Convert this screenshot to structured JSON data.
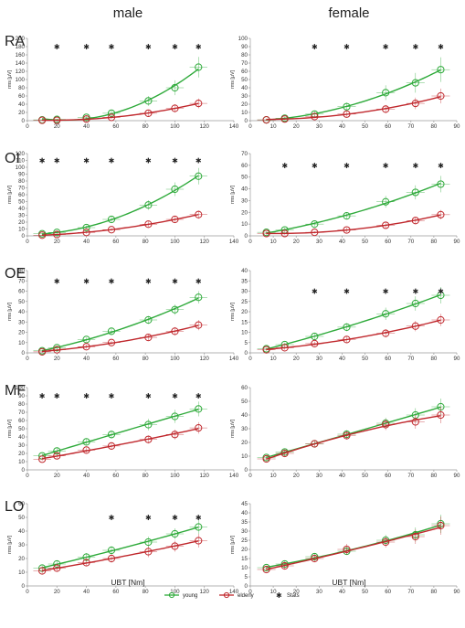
{
  "figure": {
    "col_titles": [
      "male",
      "female"
    ],
    "row_labels": [
      "RA",
      "OI",
      "OE",
      "MF",
      "LO"
    ],
    "x_label": "UBT [Nm]",
    "legend": [
      {
        "label": "young",
        "color": "#2eaa3a",
        "marker": "circle"
      },
      {
        "label": "elderly",
        "color": "#c0282d",
        "marker": "circle"
      },
      {
        "label": "Stats",
        "color": "#222222",
        "marker": "x"
      }
    ]
  },
  "chart_data": [
    {
      "type": "line",
      "muscle": "RA",
      "sex": "male",
      "ylabel": "rms [µV]",
      "xlim": [
        0,
        140
      ],
      "ylim": [
        0,
        200
      ],
      "xticks": [
        0,
        20,
        40,
        60,
        80,
        100,
        120,
        140
      ],
      "yticks": [
        0,
        20,
        40,
        60,
        80,
        100,
        120,
        140,
        160,
        180,
        200
      ],
      "series": [
        {
          "name": "young",
          "x": [
            10,
            20,
            40,
            57,
            82,
            100,
            116
          ],
          "y": [
            2,
            3,
            8,
            18,
            48,
            80,
            130
          ],
          "err": [
            2,
            2,
            5,
            8,
            12,
            18,
            25
          ]
        },
        {
          "name": "elderly",
          "x": [
            10,
            20,
            40,
            57,
            82,
            100,
            116
          ],
          "y": [
            1,
            1,
            4,
            8,
            18,
            30,
            42
          ],
          "err": [
            1,
            1,
            3,
            4,
            8,
            10,
            12
          ]
        }
      ],
      "stats_x": [
        20,
        40,
        57,
        82,
        100,
        116
      ],
      "stats_y": 180
    },
    {
      "type": "line",
      "muscle": "RA",
      "sex": "female",
      "ylabel": "rms [µV]",
      "xlim": [
        0,
        90
      ],
      "ylim": [
        0,
        100
      ],
      "xticks": [
        0,
        10,
        20,
        30,
        40,
        50,
        60,
        70,
        80,
        90
      ],
      "yticks": [
        0,
        10,
        20,
        30,
        40,
        50,
        60,
        70,
        80,
        90,
        100
      ],
      "series": [
        {
          "name": "young",
          "x": [
            7,
            15,
            28,
            42,
            59,
            72,
            83
          ],
          "y": [
            1,
            3,
            8,
            17,
            34,
            46,
            62
          ],
          "err": [
            1,
            2,
            4,
            5,
            9,
            12,
            15
          ]
        },
        {
          "name": "elderly",
          "x": [
            7,
            15,
            28,
            42,
            59,
            72,
            83
          ],
          "y": [
            1,
            2,
            5,
            8,
            14,
            21,
            30
          ],
          "err": [
            1,
            1,
            2,
            3,
            5,
            7,
            9
          ]
        }
      ],
      "stats_x": [
        28,
        42,
        59,
        72,
        83
      ],
      "stats_y": 90
    },
    {
      "type": "line",
      "muscle": "OI",
      "sex": "male",
      "ylabel": "rms [µV]",
      "xlim": [
        0,
        140
      ],
      "ylim": [
        0,
        120
      ],
      "xticks": [
        0,
        20,
        40,
        60,
        80,
        100,
        120,
        140
      ],
      "yticks": [
        0,
        10,
        20,
        30,
        40,
        50,
        60,
        70,
        80,
        90,
        100,
        110,
        120
      ],
      "series": [
        {
          "name": "young",
          "x": [
            10,
            20,
            40,
            57,
            82,
            100,
            116
          ],
          "y": [
            3,
            5,
            12,
            24,
            45,
            68,
            87
          ],
          "err": [
            2,
            2,
            3,
            4,
            7,
            10,
            12
          ]
        },
        {
          "name": "elderly",
          "x": [
            10,
            20,
            40,
            57,
            82,
            100,
            116
          ],
          "y": [
            1,
            2,
            5,
            9,
            17,
            24,
            31
          ],
          "err": [
            1,
            1,
            2,
            2,
            4,
            5,
            6
          ]
        }
      ],
      "stats_x": [
        10,
        20,
        40,
        57,
        82,
        100,
        116
      ],
      "stats_y": 110
    },
    {
      "type": "line",
      "muscle": "OI",
      "sex": "female",
      "ylabel": "rms [µV]",
      "xlim": [
        0,
        90
      ],
      "ylim": [
        0,
        70
      ],
      "xticks": [
        0,
        10,
        20,
        30,
        40,
        50,
        60,
        70,
        80,
        90
      ],
      "yticks": [
        0,
        10,
        20,
        30,
        40,
        50,
        60,
        70
      ],
      "series": [
        {
          "name": "young",
          "x": [
            7,
            15,
            28,
            42,
            59,
            72,
            83
          ],
          "y": [
            3,
            5,
            10,
            17,
            29,
            37,
            44
          ],
          "err": [
            1,
            2,
            2,
            3,
            5,
            6,
            7
          ]
        },
        {
          "name": "elderly",
          "x": [
            7,
            15,
            28,
            42,
            59,
            72,
            83
          ],
          "y": [
            2,
            2,
            3,
            5,
            9,
            13,
            18
          ],
          "err": [
            1,
            1,
            1,
            2,
            3,
            3,
            4
          ]
        }
      ],
      "stats_x": [
        15,
        28,
        42,
        59,
        72,
        83
      ],
      "stats_y": 60
    },
    {
      "type": "line",
      "muscle": "OE",
      "sex": "male",
      "ylabel": "rms [µV]",
      "xlim": [
        0,
        140
      ],
      "ylim": [
        0,
        80
      ],
      "xticks": [
        0,
        20,
        40,
        60,
        80,
        100,
        120,
        140
      ],
      "yticks": [
        0,
        10,
        20,
        30,
        40,
        50,
        60,
        70,
        80
      ],
      "series": [
        {
          "name": "young",
          "x": [
            10,
            20,
            40,
            57,
            82,
            100,
            116
          ],
          "y": [
            2,
            5,
            13,
            21,
            32,
            42,
            54
          ],
          "err": [
            1,
            2,
            2,
            3,
            4,
            5,
            6
          ]
        },
        {
          "name": "elderly",
          "x": [
            10,
            20,
            40,
            57,
            82,
            100,
            116
          ],
          "y": [
            1,
            3,
            6,
            10,
            15,
            21,
            27
          ],
          "err": [
            1,
            1,
            2,
            2,
            3,
            4,
            5
          ]
        }
      ],
      "stats_x": [
        20,
        40,
        57,
        82,
        100,
        116
      ],
      "stats_y": 70
    },
    {
      "type": "line",
      "muscle": "OE",
      "sex": "female",
      "ylabel": "rms [µV]",
      "xlim": [
        0,
        90
      ],
      "ylim": [
        0,
        40
      ],
      "xticks": [
        0,
        10,
        20,
        30,
        40,
        50,
        60,
        70,
        80,
        90
      ],
      "yticks": [
        0,
        5,
        10,
        15,
        20,
        25,
        30,
        35,
        40
      ],
      "series": [
        {
          "name": "young",
          "x": [
            7,
            15,
            28,
            42,
            59,
            72,
            83
          ],
          "y": [
            2,
            4,
            8,
            12.5,
            19,
            24,
            28
          ],
          "err": [
            0.5,
            1,
            1.5,
            2,
            3,
            3.5,
            4
          ]
        },
        {
          "name": "elderly",
          "x": [
            7,
            15,
            28,
            42,
            59,
            72,
            83
          ],
          "y": [
            1.5,
            2.5,
            4.5,
            6.5,
            9.5,
            13,
            16
          ],
          "err": [
            0.5,
            1,
            1,
            1.5,
            2,
            2.5,
            3
          ]
        }
      ],
      "stats_x": [
        28,
        42,
        59,
        72,
        83
      ],
      "stats_y": 30
    },
    {
      "type": "line",
      "muscle": "MF",
      "sex": "male",
      "ylabel": "rms [µV]",
      "xlim": [
        0,
        140
      ],
      "ylim": [
        0,
        100
      ],
      "xticks": [
        0,
        20,
        40,
        60,
        80,
        100,
        120,
        140
      ],
      "yticks": [
        0,
        10,
        20,
        30,
        40,
        50,
        60,
        70,
        80,
        90,
        100
      ],
      "series": [
        {
          "name": "young",
          "x": [
            10,
            20,
            40,
            57,
            82,
            100,
            116
          ],
          "y": [
            17,
            23,
            34,
            43,
            55,
            65,
            74
          ],
          "err": [
            3,
            4,
            4,
            5,
            7,
            8,
            9
          ]
        },
        {
          "name": "elderly",
          "x": [
            10,
            20,
            40,
            57,
            82,
            100,
            116
          ],
          "y": [
            13,
            17,
            24,
            29,
            37,
            43,
            51
          ],
          "err": [
            2,
            3,
            3,
            4,
            5,
            6,
            7
          ]
        }
      ],
      "stats_x": [
        10,
        20,
        40,
        57,
        82,
        100,
        116
      ],
      "stats_y": 90
    },
    {
      "type": "line",
      "muscle": "MF",
      "sex": "female",
      "ylabel": "rms [µV]",
      "xlim": [
        0,
        90
      ],
      "ylim": [
        0,
        60
      ],
      "xticks": [
        0,
        10,
        20,
        30,
        40,
        50,
        60,
        70,
        80,
        90
      ],
      "yticks": [
        0,
        10,
        20,
        30,
        40,
        50,
        60
      ],
      "series": [
        {
          "name": "young",
          "x": [
            7,
            15,
            28,
            42,
            59,
            72,
            83
          ],
          "y": [
            9,
            13,
            19,
            26,
            34,
            40,
            46
          ],
          "err": [
            1,
            2,
            2,
            3,
            4,
            5,
            6
          ]
        },
        {
          "name": "elderly",
          "x": [
            7,
            15,
            28,
            42,
            59,
            72,
            83
          ],
          "y": [
            8,
            12,
            19,
            25,
            33,
            35,
            40
          ],
          "err": [
            1,
            2,
            2,
            3,
            4,
            5,
            6
          ]
        }
      ],
      "stats_x": [],
      "stats_y": null
    },
    {
      "type": "line",
      "muscle": "LO",
      "sex": "male",
      "ylabel": "rms [µV]",
      "xlim": [
        0,
        140
      ],
      "ylim": [
        0,
        60
      ],
      "xticks": [
        0,
        20,
        40,
        60,
        80,
        100,
        120,
        140
      ],
      "yticks": [
        0,
        10,
        20,
        30,
        40,
        50,
        60
      ],
      "series": [
        {
          "name": "young",
          "x": [
            10,
            20,
            40,
            57,
            82,
            100,
            116
          ],
          "y": [
            13,
            16,
            21,
            26,
            32,
            38,
            43
          ],
          "err": [
            2,
            2,
            3,
            3,
            4,
            4,
            5
          ]
        },
        {
          "name": "elderly",
          "x": [
            10,
            20,
            40,
            57,
            82,
            100,
            116
          ],
          "y": [
            11,
            13,
            17,
            20,
            25,
            29,
            33
          ],
          "err": [
            2,
            2,
            2,
            3,
            4,
            4,
            5
          ]
        }
      ],
      "stats_x": [
        57,
        82,
        100,
        116
      ],
      "stats_y": 50
    },
    {
      "type": "line",
      "muscle": "LO",
      "sex": "female",
      "ylabel": "rms [µV]",
      "xlim": [
        0,
        90
      ],
      "ylim": [
        0,
        45
      ],
      "xticks": [
        0,
        10,
        20,
        30,
        40,
        50,
        60,
        70,
        80,
        90
      ],
      "yticks": [
        0,
        5,
        10,
        15,
        20,
        25,
        30,
        35,
        40,
        45
      ],
      "series": [
        {
          "name": "young",
          "x": [
            7,
            15,
            28,
            42,
            59,
            72,
            83
          ],
          "y": [
            10,
            12,
            16,
            19,
            25,
            28,
            34
          ],
          "err": [
            1,
            2,
            2,
            2,
            3,
            4,
            5
          ]
        },
        {
          "name": "elderly",
          "x": [
            7,
            15,
            28,
            42,
            59,
            72,
            83
          ],
          "y": [
            9,
            11,
            15,
            20,
            24,
            27,
            33
          ],
          "err": [
            1,
            2,
            2,
            3,
            3,
            4,
            5
          ]
        }
      ],
      "stats_x": [],
      "stats_y": null
    }
  ]
}
